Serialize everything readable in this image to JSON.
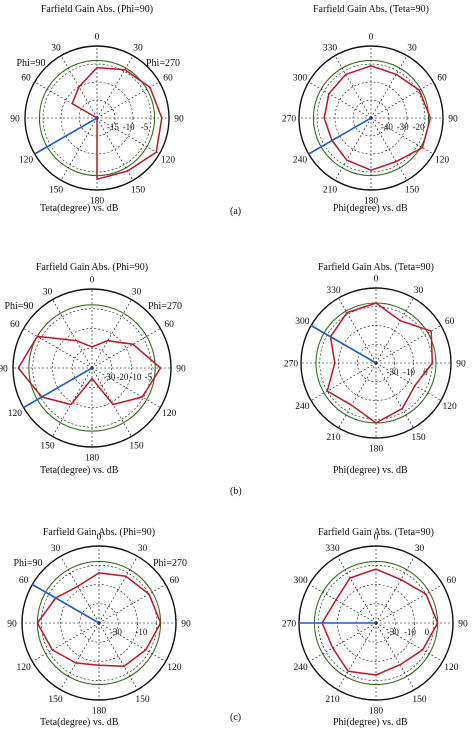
{
  "colors": {
    "grid": "#111111",
    "gain_trace": "#c0152a",
    "main_lobe": "#1d5fc8",
    "reference_circle": "#3a6e22"
  },
  "chart_data": [
    {
      "type": "polar",
      "panel": "a",
      "title": "Farfield Gain Abs. (Phi=90)",
      "angle_labels": [
        "0",
        "30",
        "60",
        "90",
        "120",
        "150",
        "180",
        "150",
        "120",
        "90",
        "60",
        "30"
      ],
      "side_labels": {
        "left": "Phi=90",
        "right": "Phi=270"
      },
      "radial_labels": [
        "-15",
        "-10",
        "-5"
      ],
      "caption": "Teta(degree) vs. dB",
      "radial_range_db": [
        -20,
        0
      ],
      "main_lobe_direction_deg": 120,
      "series": [
        {
          "angle_deg": [
            -180,
            -120,
            -90,
            -60,
            -30,
            0,
            30,
            60,
            90,
            120,
            150,
            180
          ],
          "gain_db": [
            -30,
            -30,
            -22,
            -12,
            -10,
            -6,
            -4.5,
            -3,
            -2,
            -1,
            -3,
            -3
          ]
        }
      ]
    },
    {
      "type": "polar",
      "panel": "a",
      "title": "Farfield Gain Abs. (Teta=90)",
      "angle_labels": [
        "0",
        "30",
        "60",
        "90",
        "120",
        "150",
        "180",
        "210",
        "240",
        "270",
        "300",
        "330"
      ],
      "radial_labels": [
        "-40",
        "-30",
        "-20"
      ],
      "caption": "Phi(degree) vs. dB",
      "radial_range_db": [
        -40,
        0
      ],
      "main_lobe_direction_deg": 120,
      "series": [
        {
          "angle_deg": [
            0,
            30,
            60,
            90,
            120,
            150,
            180,
            210,
            240,
            270,
            300,
            330
          ],
          "gain_db": [
            -11,
            -12,
            -9,
            -7,
            -7,
            -12,
            -11,
            -13,
            -15,
            -14,
            -13,
            -12
          ]
        }
      ]
    },
    {
      "type": "polar",
      "panel": "b",
      "title": "Farfield Gain Abs. (Phi=90)",
      "angle_labels": [
        "0",
        "30",
        "60",
        "90",
        "120",
        "150",
        "180",
        "150",
        "120",
        "90",
        "60",
        "30"
      ],
      "side_labels": {
        "left": "Phi=90",
        "right": "Phi=270"
      },
      "radial_labels": [
        "-30",
        "-20",
        "-10",
        "-5"
      ],
      "caption": "Teta(degree) vs. dB",
      "radial_range_db": [
        -30,
        0
      ],
      "main_lobe_direction_deg": 120,
      "series": [
        {
          "angle_deg": [
            -150,
            -120,
            -90,
            -60,
            -30,
            0,
            30,
            60,
            90,
            120,
            150,
            180
          ],
          "gain_db": [
            -14,
            -8,
            -2,
            -6,
            -18,
            -22,
            -18,
            -12,
            -4,
            -8,
            -14,
            -26
          ]
        }
      ]
    },
    {
      "type": "polar",
      "panel": "b",
      "title": "Farfield Gain Abs. (Teta=90)",
      "angle_labels": [
        "0",
        "30",
        "60",
        "90",
        "120",
        "150",
        "180",
        "210",
        "240",
        "270",
        "300",
        "330"
      ],
      "radial_labels": [
        "-30",
        "-10",
        "0"
      ],
      "caption": "Phi(degree) vs. dB",
      "radial_range_db": [
        -40,
        0
      ],
      "main_lobe_direction_deg": 60,
      "series": [
        {
          "angle_deg": [
            0,
            30,
            60,
            90,
            120,
            150,
            180,
            210,
            240,
            270,
            300,
            330
          ],
          "gain_db": [
            -8,
            -14,
            -6,
            -10,
            -16,
            -12,
            -8,
            -14,
            -10,
            -18,
            -12,
            -9
          ]
        }
      ]
    },
    {
      "type": "polar",
      "panel": "c",
      "title": "Farfield Gain Abs. (Phi=90)",
      "angle_labels": [
        "0",
        "30",
        "60",
        "90",
        "120",
        "150",
        "180",
        "150",
        "120",
        "90",
        "60",
        "30"
      ],
      "side_labels": {
        "left": "Phi=90",
        "right": "Phi=270"
      },
      "radial_labels": [
        "-30",
        "-10"
      ],
      "caption": "Teta(degree) vs. dB",
      "radial_range_db": [
        -40,
        0
      ],
      "main_lobe_direction_deg": 60,
      "series": [
        {
          "angle_deg": [
            -150,
            -120,
            -90,
            -60,
            -30,
            0,
            30,
            60,
            90,
            120,
            150,
            180
          ],
          "gain_db": [
            -16,
            -12,
            -8,
            -14,
            -18,
            -14,
            -12,
            -10,
            -8,
            -12,
            -14,
            -18
          ]
        }
      ]
    },
    {
      "type": "polar",
      "panel": "c",
      "title": "Farfield Gain Abs. (Teta=90)",
      "angle_labels": [
        "0",
        "30",
        "60",
        "90",
        "120",
        "150",
        "180",
        "210",
        "240",
        "270",
        "300",
        "330"
      ],
      "radial_labels": [
        "-30",
        "-10",
        "0"
      ],
      "caption": "Phi(degree) vs. dB",
      "radial_range_db": [
        -40,
        0
      ],
      "main_lobe_direction_deg": 90,
      "series": [
        {
          "angle_deg": [
            0,
            30,
            60,
            90,
            120,
            150,
            180,
            210,
            240,
            270,
            300,
            330
          ],
          "gain_db": [
            -12,
            -14,
            -10,
            -8,
            -12,
            -15,
            -13,
            -11,
            -14,
            -12,
            -16,
            -13
          ]
        }
      ]
    }
  ],
  "sublabels": [
    "(a)",
    "(b)",
    "(c)"
  ]
}
